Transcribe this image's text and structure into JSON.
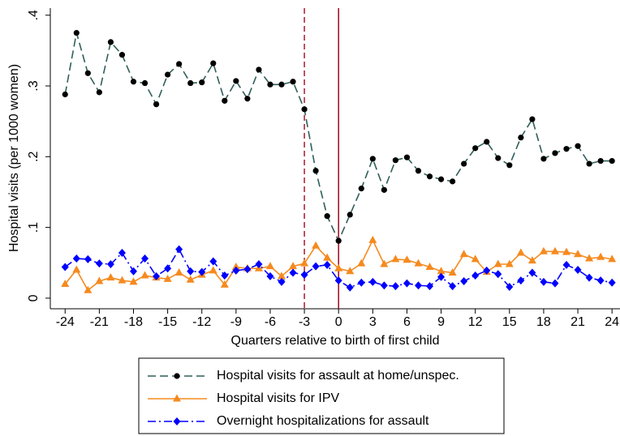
{
  "chart_data": {
    "type": "line",
    "y_label": "Hospital visits (per 1000 women)",
    "x_label": "Quarters relative to birth of first child",
    "x": [
      -24,
      -23,
      -22,
      -21,
      -20,
      -19,
      -18,
      -17,
      -16,
      -15,
      -14,
      -13,
      -12,
      -11,
      -10,
      -9,
      -8,
      -7,
      -6,
      -5,
      -4,
      -3,
      -2,
      -1,
      0,
      1,
      2,
      3,
      4,
      5,
      6,
      7,
      8,
      9,
      10,
      11,
      12,
      13,
      14,
      15,
      16,
      17,
      18,
      19,
      20,
      21,
      22,
      23,
      24
    ],
    "series": [
      {
        "name": "Hospital visits for assault at home/unspec.",
        "color": "#2f5f5a",
        "marker_color": "#000000",
        "marker": "circle",
        "line_style": "dashed",
        "values": [
          0.288,
          0.375,
          0.318,
          0.291,
          0.362,
          0.344,
          0.306,
          0.304,
          0.274,
          0.316,
          0.331,
          0.304,
          0.305,
          0.332,
          0.279,
          0.307,
          0.282,
          0.323,
          0.302,
          0.302,
          0.306,
          0.267,
          0.18,
          0.116,
          0.081,
          0.118,
          0.155,
          0.197,
          0.153,
          0.195,
          0.199,
          0.18,
          0.172,
          0.168,
          0.165,
          0.19,
          0.212,
          0.221,
          0.198,
          0.188,
          0.227,
          0.253,
          0.197,
          0.205,
          0.211,
          0.215,
          0.19,
          0.194,
          0.194
        ]
      },
      {
        "name": "Hospital visits for IPV",
        "color": "#f58a1f",
        "marker_color": "#f58a1f",
        "marker": "triangle",
        "line_style": "solid",
        "values": [
          0.02,
          0.04,
          0.011,
          0.024,
          0.029,
          0.025,
          0.023,
          0.032,
          0.029,
          0.027,
          0.036,
          0.026,
          0.033,
          0.039,
          0.019,
          0.044,
          0.042,
          0.042,
          0.045,
          0.031,
          0.045,
          0.049,
          0.074,
          0.057,
          0.042,
          0.038,
          0.049,
          0.082,
          0.048,
          0.055,
          0.054,
          0.049,
          0.044,
          0.038,
          0.036,
          0.062,
          0.055,
          0.037,
          0.048,
          0.048,
          0.064,
          0.053,
          0.066,
          0.066,
          0.065,
          0.062,
          0.056,
          0.058,
          0.055
        ]
      },
      {
        "name": "Overnight hospitalizations for assault",
        "color": "#0000ff",
        "marker_color": "#0000ff",
        "marker": "diamond",
        "line_style": "dashdot",
        "values": [
          0.044,
          0.056,
          0.055,
          0.049,
          0.048,
          0.064,
          0.038,
          0.056,
          0.031,
          0.042,
          0.069,
          0.038,
          0.037,
          0.052,
          0.032,
          0.039,
          0.041,
          0.048,
          0.031,
          0.023,
          0.036,
          0.033,
          0.045,
          0.047,
          0.025,
          0.015,
          0.022,
          0.023,
          0.018,
          0.017,
          0.021,
          0.018,
          0.017,
          0.03,
          0.017,
          0.024,
          0.032,
          0.039,
          0.034,
          0.016,
          0.025,
          0.036,
          0.023,
          0.021,
          0.047,
          0.04,
          0.029,
          0.025,
          0.022
        ]
      }
    ],
    "vlines": [
      {
        "x": -3,
        "color": "#b0283a",
        "style": "dashed"
      },
      {
        "x": 0,
        "color": "#a01828",
        "style": "solid"
      }
    ],
    "xlim": [
      -25.3,
      24.7
    ],
    "xticks": [
      -24,
      -21,
      -18,
      -15,
      -12,
      -9,
      -6,
      -3,
      0,
      3,
      6,
      9,
      12,
      15,
      18,
      21,
      24
    ],
    "ylim": [
      -0.015,
      0.41
    ],
    "yticks": [
      0,
      {
        "value": 0.1,
        "label": ".1"
      },
      {
        "value": 0.2,
        "label": ".2"
      },
      {
        "value": 0.3,
        "label": ".3"
      },
      {
        "value": 0.4,
        "label": ".4"
      }
    ],
    "grid": false,
    "legend_position": "bottom"
  }
}
